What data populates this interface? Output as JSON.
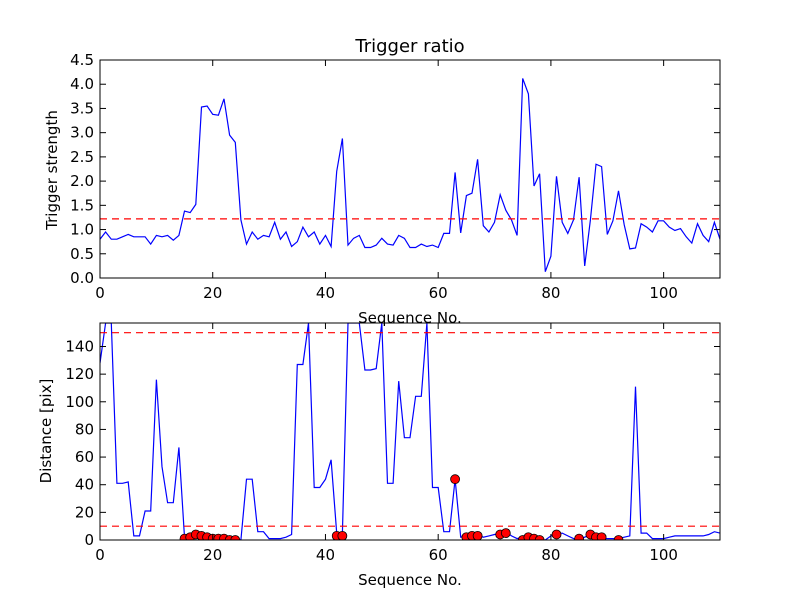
{
  "chart_data": [
    {
      "type": "line",
      "title": "Trigger ratio",
      "xlabel": "Sequence No.",
      "ylabel": "Trigger strength",
      "xlim": [
        0,
        110
      ],
      "ylim": [
        0,
        4.5
      ],
      "xticks": [
        0,
        20,
        40,
        60,
        80,
        100
      ],
      "yticks": [
        0.0,
        0.5,
        1.0,
        1.5,
        2.0,
        2.5,
        3.0,
        3.5,
        4.0,
        4.5
      ],
      "xtick_labels": [
        "0",
        "20",
        "40",
        "60",
        "80",
        "100"
      ],
      "ytick_labels": [
        "0.0",
        "0.5",
        "1.0",
        "1.5",
        "2.0",
        "2.5",
        "3.0",
        "3.5",
        "4.0",
        "4.5"
      ],
      "series": [
        {
          "style": "solid",
          "color": "#0000ff",
          "x": [
            0,
            1,
            2,
            3,
            4,
            5,
            6,
            7,
            8,
            9,
            10,
            11,
            12,
            13,
            14,
            15,
            16,
            17,
            18,
            19,
            20,
            21,
            22,
            23,
            24,
            25,
            26,
            27,
            28,
            29,
            30,
            31,
            32,
            33,
            34,
            35,
            36,
            37,
            38,
            39,
            40,
            41,
            42,
            43,
            44,
            45,
            46,
            47,
            48,
            49,
            50,
            51,
            52,
            53,
            54,
            55,
            56,
            57,
            58,
            59,
            60,
            61,
            62,
            63,
            64,
            65,
            66,
            67,
            68,
            69,
            70,
            71,
            72,
            73,
            74,
            75,
            76,
            77,
            78,
            79,
            80,
            81,
            82,
            83,
            84,
            85,
            86,
            87,
            88,
            89,
            90,
            91,
            92,
            93,
            94,
            95,
            96,
            97,
            98,
            99,
            100,
            101,
            102,
            103,
            104,
            105,
            106,
            107,
            108,
            109,
            110
          ],
          "values": [
            0.8,
            0.95,
            0.8,
            0.8,
            0.85,
            0.9,
            0.85,
            0.85,
            0.85,
            0.7,
            0.88,
            0.85,
            0.88,
            0.78,
            0.88,
            1.38,
            1.35,
            1.52,
            3.53,
            3.55,
            3.38,
            3.36,
            3.7,
            2.95,
            2.8,
            1.2,
            0.7,
            0.95,
            0.8,
            0.88,
            0.85,
            1.15,
            0.8,
            0.95,
            0.65,
            0.75,
            1.05,
            0.85,
            0.95,
            0.7,
            0.88,
            0.65,
            2.2,
            2.88,
            0.68,
            0.82,
            0.88,
            0.63,
            0.63,
            0.68,
            0.82,
            0.7,
            0.68,
            0.88,
            0.82,
            0.63,
            0.63,
            0.7,
            0.65,
            0.68,
            0.63,
            0.92,
            0.92,
            2.18,
            0.93,
            1.7,
            1.75,
            2.45,
            1.08,
            0.95,
            1.15,
            1.72,
            1.4,
            1.2,
            0.88,
            4.12,
            3.8,
            1.9,
            2.15,
            0.13,
            0.45,
            2.1,
            1.15,
            0.92,
            1.2,
            2.08,
            0.25,
            1.2,
            2.35,
            2.3,
            0.9,
            1.18,
            1.8,
            1.1,
            0.6,
            0.62,
            1.12,
            1.05,
            0.95,
            1.18,
            1.18,
            1.05,
            0.98,
            1.02,
            0.85,
            0.72,
            1.12,
            0.88,
            0.75,
            1.15,
            0.8
          ]
        },
        {
          "style": "dashed",
          "color": "#ff0000",
          "x": [
            0,
            110
          ],
          "values": [
            1.22,
            1.22
          ]
        }
      ],
      "grid": false
    },
    {
      "type": "line",
      "title": "",
      "xlabel": "Sequence No.",
      "ylabel": "Distance [pix]",
      "xlim": [
        0,
        110
      ],
      "ylim": [
        0,
        157
      ],
      "xticks": [
        0,
        20,
        40,
        60,
        80,
        100
      ],
      "yticks": [
        0,
        20,
        40,
        60,
        80,
        100,
        120,
        140
      ],
      "xtick_labels": [
        "0",
        "20",
        "40",
        "60",
        "80",
        "100"
      ],
      "ytick_labels": [
        "0",
        "20",
        "40",
        "60",
        "80",
        "100",
        "120",
        "140"
      ],
      "series": [
        {
          "style": "solid",
          "color": "#0000ff",
          "x": [
            0,
            1,
            2,
            3,
            4,
            5,
            6,
            7,
            8,
            9,
            10,
            11,
            12,
            13,
            14,
            15,
            16,
            17,
            18,
            19,
            20,
            21,
            22,
            23,
            24,
            25,
            26,
            27,
            28,
            29,
            30,
            31,
            32,
            33,
            34,
            35,
            36,
            37,
            38,
            39,
            40,
            41,
            42,
            43,
            44,
            45,
            46,
            47,
            48,
            49,
            50,
            51,
            52,
            53,
            54,
            55,
            56,
            57,
            58,
            59,
            60,
            61,
            62,
            63,
            64,
            65,
            66,
            67,
            68,
            69,
            70,
            71,
            72,
            73,
            74,
            75,
            76,
            77,
            78,
            79,
            80,
            81,
            82,
            83,
            84,
            85,
            86,
            87,
            88,
            89,
            90,
            91,
            92,
            93,
            94,
            95,
            96,
            97,
            98,
            99,
            100,
            101,
            102,
            103,
            104,
            105,
            106,
            107,
            108,
            109,
            110
          ],
          "values": [
            128,
            157,
            157,
            41,
            41,
            42,
            3,
            3,
            21,
            21,
            116,
            53,
            27,
            27,
            67,
            2,
            3,
            5,
            3,
            2,
            2,
            2,
            1,
            1,
            1,
            0,
            44,
            44,
            6,
            6,
            1,
            1,
            1,
            2,
            4,
            127,
            127,
            157,
            38,
            38,
            44,
            58,
            5,
            5,
            157,
            157,
            157,
            123,
            123,
            124,
            157,
            41,
            41,
            115,
            74,
            74,
            104,
            104,
            157,
            38,
            38,
            6,
            6,
            44,
            2,
            3,
            4,
            4,
            2,
            3,
            4,
            5,
            6,
            3,
            1,
            2,
            2,
            1,
            0,
            0,
            3,
            4,
            5,
            3,
            1,
            0,
            2,
            4,
            2,
            1,
            1,
            1,
            1,
            2,
            3,
            111,
            5,
            5,
            1,
            1,
            1,
            2,
            3,
            3,
            3,
            3,
            3,
            3,
            4,
            6,
            5
          ]
        },
        {
          "style": "dashed",
          "color": "#ff0000",
          "x": [
            0,
            110
          ],
          "values": [
            150,
            150
          ]
        },
        {
          "style": "dashed",
          "color": "#ff0000",
          "x": [
            0,
            110
          ],
          "values": [
            10,
            10
          ]
        },
        {
          "style": "markers",
          "color": "#ff0000",
          "x": [
            15,
            16,
            17,
            18,
            19,
            20,
            21,
            22,
            23,
            24,
            42,
            43,
            63,
            65,
            66,
            67,
            71,
            72,
            75,
            76,
            77,
            78,
            81,
            85,
            87,
            88,
            89,
            92
          ],
          "values": [
            1,
            2,
            4,
            3,
            2,
            1,
            1,
            1,
            0,
            0,
            3,
            3,
            44,
            2,
            3,
            3,
            4,
            5,
            0,
            2,
            1,
            0,
            4,
            1,
            4,
            2,
            2,
            0
          ]
        }
      ],
      "grid": false
    }
  ]
}
